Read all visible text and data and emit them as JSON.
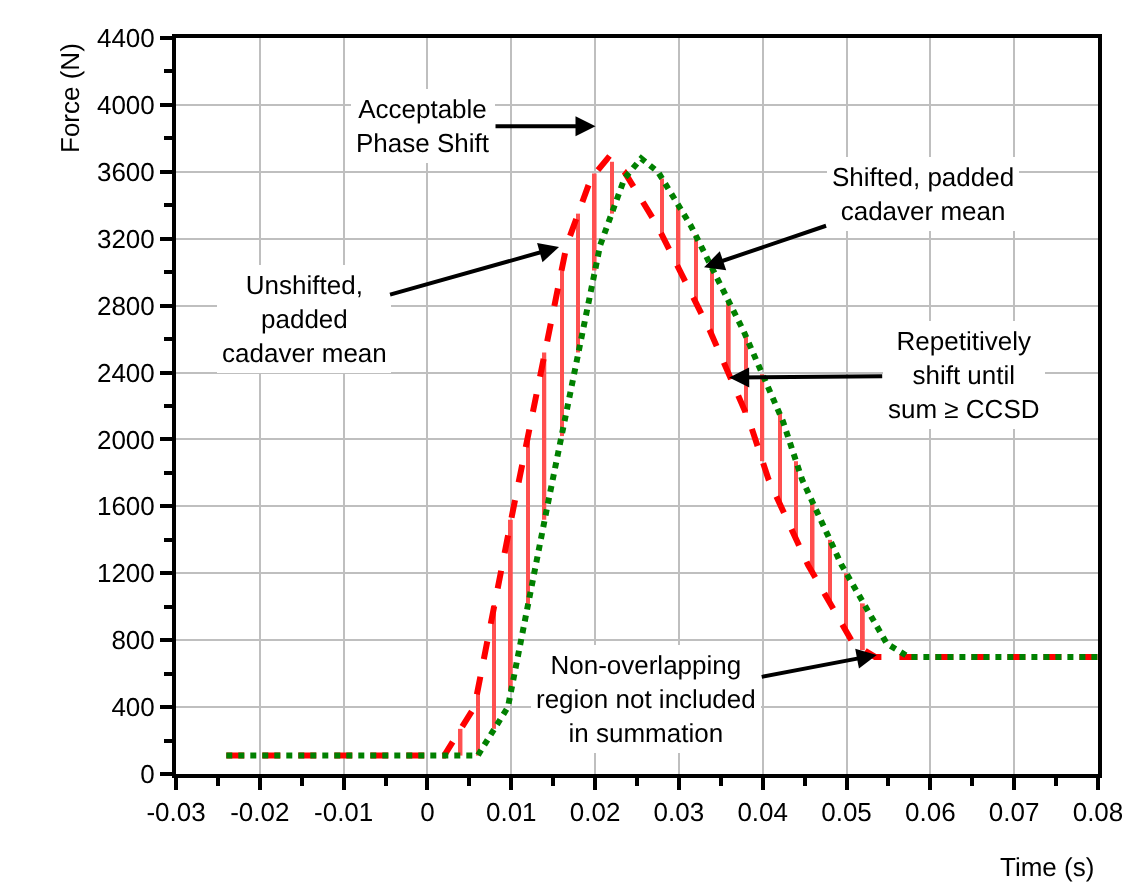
{
  "chart_data": {
    "type": "line",
    "xlabel": "Time (s)",
    "ylabel": "Force (N)",
    "xlim": [
      -0.03,
      0.08
    ],
    "xticks": [
      -0.03,
      -0.02,
      -0.01,
      0,
      0.01,
      0.02,
      0.03,
      0.04,
      0.05,
      0.06,
      0.07,
      0.08
    ],
    "ylim": [
      0,
      4400
    ],
    "yticks": [
      0,
      400,
      800,
      1200,
      1600,
      2000,
      2400,
      2800,
      3200,
      3600,
      4000,
      4400
    ],
    "grid": true,
    "marker": "none",
    "series": [
      {
        "type": "bar",
        "color": "#ff5050",
        "x": [
          0.004,
          0.006,
          0.008,
          0.01,
          0.012,
          0.014,
          0.016,
          0.018,
          0.02,
          0.022,
          0.028,
          0.03,
          0.032,
          0.034,
          0.036,
          0.038,
          0.04,
          0.042,
          0.044,
          0.046,
          0.048,
          0.05,
          0.052
        ],
        "base": [
          110,
          110,
          270,
          500,
          1010,
          1520,
          2020,
          2520,
          3010,
          3350,
          3220,
          3020,
          2820,
          2620,
          2390,
          2160,
          1870,
          1620,
          1400,
          1200,
          1020,
          850,
          740
        ],
        "values": [
          160,
          390,
          740,
          1020,
          1010,
          1000,
          990,
          830,
          580,
          310,
          340,
          380,
          400,
          400,
          430,
          460,
          520,
          540,
          470,
          420,
          380,
          350,
          280
        ]
      },
      {
        "color": "#ff0000",
        "line_style": "dashed",
        "x": [
          -0.024,
          0.002,
          0.0056,
          0.0103,
          0.0166,
          0.0195,
          0.0215,
          0.0235,
          0.0274,
          0.0337,
          0.0384,
          0.0407,
          0.0454,
          0.0508,
          0.0534,
          0.08
        ],
        "values": [
          110,
          110,
          400,
          1600,
          3160,
          3560,
          3680,
          3600,
          3280,
          2650,
          2110,
          1760,
          1250,
          780,
          700,
          700
        ]
      },
      {
        "color": "#008000",
        "line_style": "dotted",
        "x": [
          -0.024,
          0.006,
          0.0096,
          0.0143,
          0.0206,
          0.0235,
          0.0255,
          0.0275,
          0.0314,
          0.0377,
          0.0424,
          0.0447,
          0.0494,
          0.0548,
          0.0574,
          0.08
        ],
        "values": [
          110,
          110,
          400,
          1600,
          3160,
          3560,
          3680,
          3600,
          3280,
          2650,
          2110,
          1760,
          1250,
          780,
          700,
          700
        ]
      }
    ],
    "annotations": [
      "Acceptable\nPhase Shift",
      {
        "text": "Unshifted,\npadded\ncadaver mean",
        "x": 0.0157,
        "y": 3150
      },
      {
        "text": "Shifted, padded\ncadaver mean",
        "x": 0.033,
        "y": 3030
      },
      {
        "text": "Repetitively\nshift until\nsum ≥ CCSD",
        "x": 0.036,
        "y": 2370
      },
      {
        "text": "Non-overlapping\nregion not included\nin summation",
        "x": 0.0536,
        "y": 712
      }
    ]
  }
}
